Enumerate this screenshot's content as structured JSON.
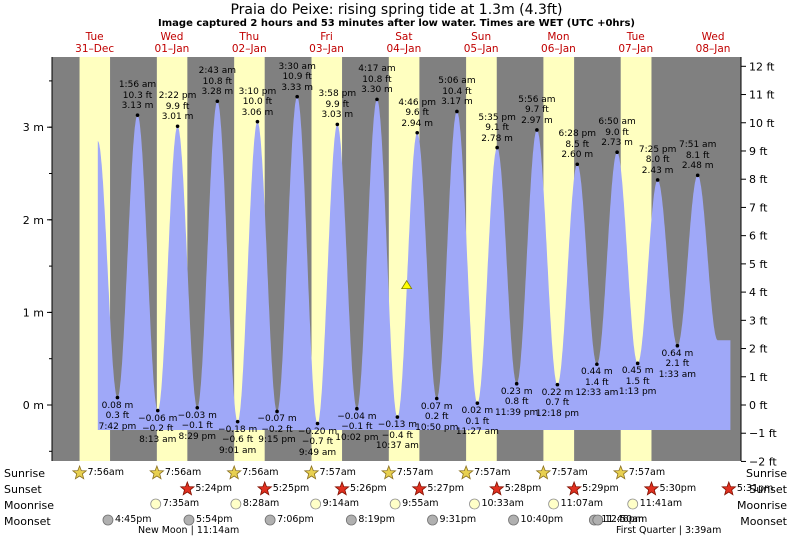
{
  "header": {
    "title": "Praia do Peixe: rising  spring tide at 1.3m (4.3ft)",
    "subtitle": "Image captured 2 hours and 53 minutes after low water. Times are WET (UTC +0hrs)"
  },
  "days": [
    {
      "dow": "Tue",
      "date": "31–Dec",
      "sunrise": "7:56am",
      "sunset": "",
      "moonrise": "",
      "moonset": "4:45pm"
    },
    {
      "dow": "Wed",
      "date": "01–Jan",
      "sunrise": "7:56am",
      "sunset": "5:24pm",
      "moonrise": "7:35am",
      "moonset": "5:54pm"
    },
    {
      "dow": "Thu",
      "date": "02–Jan",
      "sunrise": "7:56am",
      "sunset": "5:25pm",
      "moonrise": "8:28am",
      "moonset": "7:06pm"
    },
    {
      "dow": "Fri",
      "date": "03–Jan",
      "sunrise": "7:57am",
      "sunset": "5:26pm",
      "moonrise": "9:14am",
      "moonset": "8:19pm"
    },
    {
      "dow": "Sat",
      "date": "04–Jan",
      "sunrise": "7:57am",
      "sunset": "5:27pm",
      "moonrise": "9:55am",
      "moonset": "9:31pm"
    },
    {
      "dow": "Sun",
      "date": "05–Jan",
      "sunrise": "7:57am",
      "sunset": "5:28pm",
      "moonrise": "10:33am",
      "moonset": "10:40pm"
    },
    {
      "dow": "Mon",
      "date": "06–Jan",
      "sunrise": "7:57am",
      "sunset": "5:29pm",
      "moonrise": "11:07am",
      "moonset": "11:46pm"
    },
    {
      "dow": "Tue",
      "date": "07–Jan",
      "sunrise": "7:57am",
      "sunset": "5:30pm",
      "moonrise": "11:41am",
      "moonset": "12:50am"
    },
    {
      "dow": "Wed",
      "date": "08–Jan",
      "sunrise": "",
      "sunset": "5:31pm",
      "moonrise": "",
      "moonset": ""
    }
  ],
  "rows": {
    "sunrise": "Sunrise",
    "sunset": "Sunset",
    "moonrise": "Moonrise",
    "moonset": "Moonset"
  },
  "notes": {
    "new_moon": "New Moon | 11:14am",
    "first_quarter": "First Quarter | 3:39am"
  },
  "colors": {
    "night": "#808080",
    "day": "#ffffc0",
    "water": "#9fa8f8",
    "axis_label": "#c00000"
  },
  "chart_data": {
    "type": "area",
    "title": "Praia do Peixe: rising  spring tide at 1.3m (4.3ft)",
    "current_level_m": 1.3,
    "current_level_ft": 4.3,
    "current_time": "04-Jan 13:30",
    "left_axis": {
      "unit": "m",
      "ticks": [
        "0 m",
        "1 m",
        "2 m",
        "3 m"
      ],
      "range": [
        -0.6,
        3.75
      ]
    },
    "right_axis": {
      "unit": "ft",
      "ticks": [
        "−2 ft",
        "−1 ft",
        "0 ft",
        "1 ft",
        "2 ft",
        "3 ft",
        "4 ft",
        "5 ft",
        "6 ft",
        "7 ft",
        "8 ft",
        "9 ft",
        "10 ft",
        "11 ft",
        "12 ft"
      ]
    },
    "x_range": [
      "31-Dec 00:00",
      "08-Jan 18:00"
    ],
    "extrema": [
      {
        "day": 0,
        "time": "7:42 pm",
        "kind": "low",
        "m": "0.08 m",
        "ft": "0.3 ft",
        "h": 0.08
      },
      {
        "day": 1,
        "time": "1:56 am",
        "kind": "high",
        "m": "3.13 m",
        "ft": "10.3 ft",
        "h": 3.13
      },
      {
        "day": 1,
        "time": "8:13 am",
        "kind": "low",
        "m": "−0.06 m",
        "ft": "−0.2 ft",
        "h": -0.06
      },
      {
        "day": 1,
        "time": "2:22 pm",
        "kind": "high",
        "m": "3.01 m",
        "ft": "9.9 ft",
        "h": 3.01
      },
      {
        "day": 1,
        "time": "8:29 pm",
        "kind": "low",
        "m": "−0.03 m",
        "ft": "−0.1 ft",
        "h": -0.03
      },
      {
        "day": 2,
        "time": "2:43 am",
        "kind": "high",
        "m": "3.28 m",
        "ft": "10.8 ft",
        "h": 3.28
      },
      {
        "day": 2,
        "time": "9:01 am",
        "kind": "low",
        "m": "−0.18 m",
        "ft": "−0.6 ft",
        "h": -0.18
      },
      {
        "day": 2,
        "time": "3:10 pm",
        "kind": "high",
        "m": "3.06 m",
        "ft": "10.0 ft",
        "h": 3.06
      },
      {
        "day": 2,
        "time": "9:15 pm",
        "kind": "low",
        "m": "−0.07 m",
        "ft": "−0.2 ft",
        "h": -0.07
      },
      {
        "day": 3,
        "time": "3:30 am",
        "kind": "high",
        "m": "3.33 m",
        "ft": "10.9 ft",
        "h": 3.33
      },
      {
        "day": 3,
        "time": "9:49 am",
        "kind": "low",
        "m": "−0.20 m",
        "ft": "−0.7 ft",
        "h": -0.2
      },
      {
        "day": 3,
        "time": "3:58 pm",
        "kind": "high",
        "m": "3.03 m",
        "ft": "9.9 ft",
        "h": 3.03
      },
      {
        "day": 3,
        "time": "10:02 pm",
        "kind": "low",
        "m": "−0.04 m",
        "ft": "−0.1 ft",
        "h": -0.04
      },
      {
        "day": 4,
        "time": "4:17 am",
        "kind": "high",
        "m": "3.30 m",
        "ft": "10.8 ft",
        "h": 3.3
      },
      {
        "day": 4,
        "time": "10:37 am",
        "kind": "low",
        "m": "−0.13 m",
        "ft": "−0.4 ft",
        "h": -0.13
      },
      {
        "day": 4,
        "time": "4:46 pm",
        "kind": "high",
        "m": "2.94 m",
        "ft": "9.6 ft",
        "h": 2.94
      },
      {
        "day": 4,
        "time": "10:50 pm",
        "kind": "low",
        "m": "0.07 m",
        "ft": "0.2 ft",
        "h": 0.07
      },
      {
        "day": 5,
        "time": "5:06 am",
        "kind": "high",
        "m": "3.17 m",
        "ft": "10.4 ft",
        "h": 3.17
      },
      {
        "day": 5,
        "time": "11:27 am",
        "kind": "low",
        "m": "0.02 m",
        "ft": "0.1 ft",
        "h": 0.02
      },
      {
        "day": 5,
        "time": "5:35 pm",
        "kind": "high",
        "m": "2.78 m",
        "ft": "9.1 ft",
        "h": 2.78
      },
      {
        "day": 5,
        "time": "11:39 pm",
        "kind": "low",
        "m": "0.23 m",
        "ft": "0.8 ft",
        "h": 0.23
      },
      {
        "day": 6,
        "time": "5:56 am",
        "kind": "high",
        "m": "2.97 m",
        "ft": "9.7 ft",
        "h": 2.97
      },
      {
        "day": 6,
        "time": "12:18 pm",
        "kind": "low",
        "m": "0.22 m",
        "ft": "0.7 ft",
        "h": 0.22
      },
      {
        "day": 6,
        "time": "6:28 pm",
        "kind": "high",
        "m": "2.60 m",
        "ft": "8.5 ft",
        "h": 2.6
      },
      {
        "day": 7,
        "time": "12:33 am",
        "kind": "low",
        "m": "0.44 m",
        "ft": "1.4 ft",
        "h": 0.44
      },
      {
        "day": 7,
        "time": "6:50 am",
        "kind": "high",
        "m": "2.73 m",
        "ft": "9.0 ft",
        "h": 2.73
      },
      {
        "day": 7,
        "time": "1:13 pm",
        "kind": "low",
        "m": "0.45 m",
        "ft": "1.5 ft",
        "h": 0.45
      },
      {
        "day": 7,
        "time": "7:25 pm",
        "kind": "high",
        "m": "2.43 m",
        "ft": "8.0 ft",
        "h": 2.43
      },
      {
        "day": 8,
        "time": "1:33 am",
        "kind": "low",
        "m": "0.64 m",
        "ft": "2.1 ft",
        "h": 0.64
      },
      {
        "day": 8,
        "time": "7:51 am",
        "kind": "high",
        "m": "2.48 m",
        "ft": "8.1 ft",
        "h": 2.48
      }
    ]
  }
}
